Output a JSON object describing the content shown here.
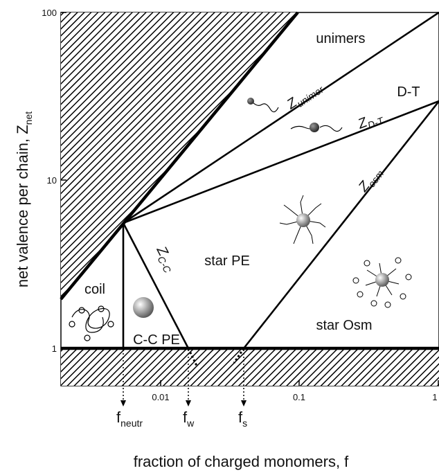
{
  "axes": {
    "y_label": {
      "main": "net valence per chain, Z",
      "sub": "net"
    },
    "x_label": "fraction of charged monomers, f",
    "y_ticks": [
      "100",
      "10",
      "1"
    ],
    "x_ticks": [
      "0.01",
      "0.1",
      "1"
    ]
  },
  "regions": [
    "unimers",
    "D-T",
    "star PE",
    "star Osm",
    "coil",
    "C-C PE"
  ],
  "boundaries": [
    {
      "main": "Z",
      "sub": "unimer"
    },
    {
      "main": "Z",
      "sub": "D-T"
    },
    {
      "main": "Z",
      "sub": "osm"
    },
    {
      "main": "Z",
      "sub": "C-C"
    }
  ],
  "markers": [
    {
      "main": "f",
      "sub": "neutr"
    },
    {
      "main": "f",
      "sub": "w"
    },
    {
      "main": "f",
      "sub": "s"
    }
  ]
}
